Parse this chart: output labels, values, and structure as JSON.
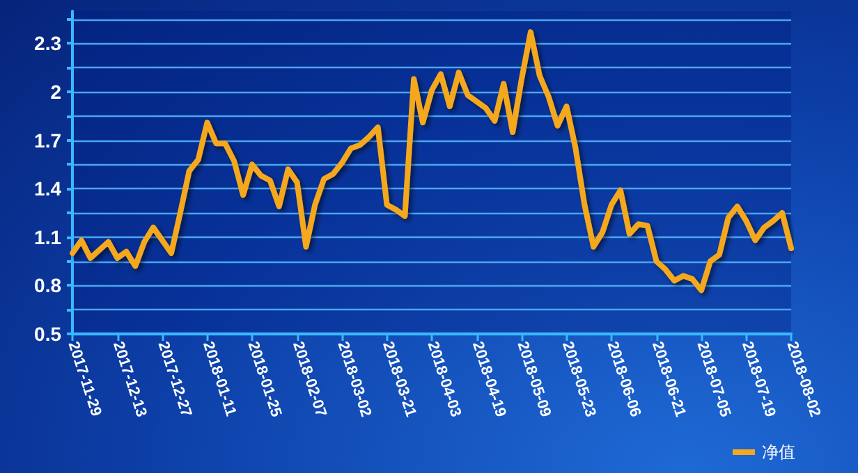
{
  "chart_data": {
    "type": "line",
    "categories": [
      "2017-11-29",
      null,
      null,
      null,
      null,
      "2017-12-13",
      null,
      null,
      null,
      null,
      "2017-12-27",
      null,
      null,
      null,
      null,
      "2018-01-11",
      null,
      null,
      null,
      null,
      "2018-01-25",
      null,
      null,
      null,
      null,
      "2018-02-07",
      null,
      null,
      null,
      null,
      "2018-03-02",
      null,
      null,
      null,
      null,
      "2018-03-21",
      null,
      null,
      null,
      null,
      "2018-04-03",
      null,
      null,
      null,
      null,
      "2018-04-19",
      null,
      null,
      null,
      null,
      "2018-05-09",
      null,
      null,
      null,
      null,
      "2018-05-23",
      null,
      null,
      null,
      null,
      "2018-06-06",
      null,
      null,
      null,
      null,
      "2018-06-21",
      null,
      null,
      null,
      null,
      "2018-07-05",
      null,
      null,
      null,
      null,
      "2018-07-19",
      null,
      null,
      null,
      null,
      "2018-08-02"
    ],
    "series": [
      {
        "name": "净值",
        "color": "#f5a81e",
        "values": [
          1.0,
          1.08,
          0.97,
          1.02,
          1.07,
          0.97,
          1.01,
          0.92,
          1.07,
          1.16,
          1.08,
          1.0,
          1.25,
          1.51,
          1.58,
          1.81,
          1.68,
          1.68,
          1.57,
          1.36,
          1.55,
          1.48,
          1.45,
          1.29,
          1.52,
          1.44,
          1.04,
          1.3,
          1.46,
          1.49,
          1.56,
          1.65,
          1.67,
          1.72,
          1.78,
          1.3,
          1.27,
          1.23,
          2.08,
          1.81,
          2.01,
          2.11,
          1.91,
          2.12,
          1.98,
          1.94,
          1.9,
          1.82,
          2.05,
          1.75,
          2.08,
          2.37,
          2.1,
          1.97,
          1.79,
          1.91,
          1.65,
          1.3,
          1.04,
          1.13,
          1.3,
          1.39,
          1.12,
          1.18,
          1.17,
          0.95,
          0.9,
          0.83,
          0.86,
          0.84,
          0.77,
          0.95,
          0.99,
          1.22,
          1.29,
          1.2,
          1.08,
          1.16,
          1.2,
          1.25,
          1.03
        ]
      }
    ],
    "ylim": [
      0.5,
      2.5
    ],
    "yticks": [
      0.5,
      {
        "value": 0.65,
        "label": null
      },
      0.8,
      {
        "value": 0.95,
        "label": null
      },
      1.1,
      {
        "value": 1.25,
        "label": null
      },
      1.4,
      {
        "value": 1.55,
        "label": null
      },
      1.7,
      {
        "value": 1.85,
        "label": null
      },
      2,
      {
        "value": 2.15,
        "label": null
      },
      2.3,
      {
        "value": 2.45,
        "label": null
      }
    ],
    "grid": "y",
    "legend": "bottom right"
  }
}
